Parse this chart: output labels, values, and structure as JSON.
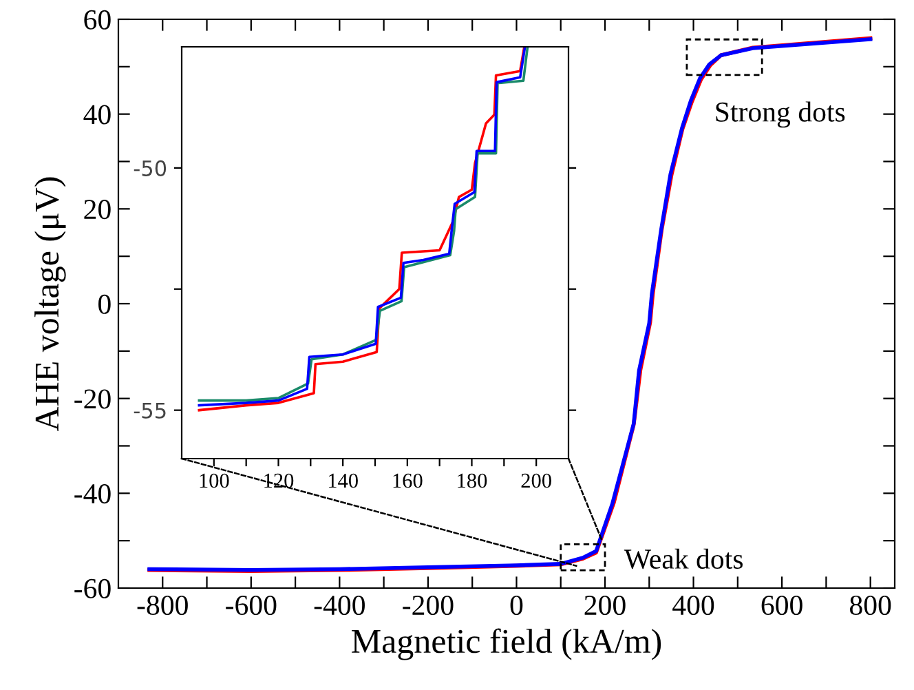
{
  "chart_data": [
    {
      "type": "line",
      "xlabel": "Magnetic field (kA/m)",
      "ylabel": "AHE voltage (μV)",
      "xlim": [
        -900,
        855
      ],
      "ylim": [
        -60,
        60
      ],
      "xticks": [
        -800,
        {
          "value": -700,
          "label": null
        },
        -600,
        {
          "value": -500,
          "label": null
        },
        -400,
        {
          "value": -300,
          "label": null
        },
        -200,
        {
          "value": -100,
          "label": null
        },
        0,
        {
          "value": 100,
          "label": null
        },
        200,
        {
          "value": 300,
          "label": null
        },
        400,
        {
          "value": 500,
          "label": null
        },
        600,
        {
          "value": 700,
          "label": null
        },
        800
      ],
      "yticks": [
        -60,
        {
          "value": -50,
          "label": null
        },
        -40,
        {
          "value": -30,
          "label": null
        },
        -20,
        {
          "value": -10,
          "label": null
        },
        0,
        {
          "value": 10,
          "label": null
        },
        20,
        {
          "value": 30,
          "label": null
        },
        40,
        {
          "value": 50,
          "label": null
        },
        60
      ],
      "grid": false,
      "legend": false,
      "annotations": [
        {
          "text": "Weak dots",
          "x": 150,
          "y": -52
        },
        {
          "text": "Strong dots",
          "x": 470,
          "y": 52
        }
      ],
      "series": [
        {
          "color": "#ff0000",
          "x": [
            -830,
            -600,
            -400,
            -200,
            0,
            100,
            150,
            180,
            220,
            265,
            280,
            302,
            308,
            328,
            350,
            375,
            396,
            417,
            438,
            462,
            534,
            800
          ],
          "values": [
            -56.2,
            -56.4,
            -56.2,
            -55.8,
            -55.3,
            -55.0,
            -53.8,
            -52.5,
            -42.0,
            -25.5,
            -14.0,
            -4.0,
            2.0,
            15.5,
            27.0,
            36.8,
            42.5,
            47.3,
            50.3,
            52.4,
            54.0,
            56.0
          ]
        },
        {
          "color": "#0000ff",
          "x": [
            -830,
            -600,
            -400,
            -200,
            0,
            100,
            150,
            180,
            217,
            265,
            277,
            300,
            306,
            327,
            348,
            374,
            394,
            415,
            436,
            462,
            534,
            800
          ],
          "values": [
            -56.0,
            -56.2,
            -56.0,
            -55.6,
            -55.2,
            -54.9,
            -53.6,
            -52.2,
            -42.1,
            -25.3,
            -14.1,
            -4.1,
            2.1,
            15.6,
            27.3,
            37.0,
            42.8,
            47.6,
            50.5,
            52.4,
            53.9,
            55.8
          ]
        }
      ]
    },
    {
      "type": "line",
      "xlim": [
        90,
        210
      ],
      "ylim": [
        -56,
        -47.5
      ],
      "xticks": [
        100,
        {
          "value": 110,
          "label": null
        },
        120,
        {
          "value": 130,
          "label": null
        },
        140,
        {
          "value": 150,
          "label": null
        },
        160,
        {
          "value": 170,
          "label": null
        },
        180,
        {
          "value": 190,
          "label": null
        },
        200
      ],
      "yticks": [
        -55,
        {
          "value": -52.5,
          "label": null
        },
        -50
      ],
      "grid": false,
      "legend": false,
      "series": [
        {
          "color": "#ff0000",
          "x": [
            95.4,
            110,
            120,
            131,
            131.5,
            140,
            150.5,
            151.3,
            157.5,
            158.3,
            170,
            174.2,
            176,
            180,
            181,
            184.4,
            187,
            187.5,
            195,
            196.3
          ],
          "values": [
            -55.0,
            -54.9,
            -54.85,
            -54.65,
            -54.05,
            -54.0,
            -53.8,
            -52.9,
            -52.5,
            -51.75,
            -51.7,
            -51.1,
            -50.6,
            -50.45,
            -49.9,
            -49.08,
            -48.9,
            -48.09,
            -48.0,
            -47.5
          ]
        },
        {
          "color": "#1a8a6a",
          "x": [
            95.4,
            110,
            120,
            129.2,
            130.3,
            140,
            150.3,
            151.5,
            158.2,
            159,
            173.3,
            174.5,
            175,
            181,
            181.8,
            187.5,
            188,
            196,
            197.3
          ],
          "values": [
            -54.8,
            -54.8,
            -54.75,
            -54.45,
            -53.95,
            -53.85,
            -53.55,
            -52.95,
            -52.75,
            -52.05,
            -51.8,
            -51.3,
            -50.85,
            -50.6,
            -49.7,
            -49.7,
            -48.25,
            -48.2,
            -47.5
          ]
        },
        {
          "color": "#0000ff",
          "x": [
            95.4,
            110,
            120,
            128.9,
            129.6,
            140,
            150.2,
            150.9,
            158,
            158.8,
            165,
            173,
            173.8,
            174.7,
            180.8,
            181.5,
            187.2,
            187.7,
            195,
            196.5
          ],
          "values": [
            -54.9,
            -54.85,
            -54.8,
            -54.56,
            -53.9,
            -53.85,
            -53.63,
            -52.87,
            -52.68,
            -51.96,
            -51.9,
            -51.77,
            -51.26,
            -50.74,
            -50.5,
            -49.65,
            -49.65,
            -48.23,
            -48.13,
            -47.5
          ]
        }
      ]
    }
  ]
}
